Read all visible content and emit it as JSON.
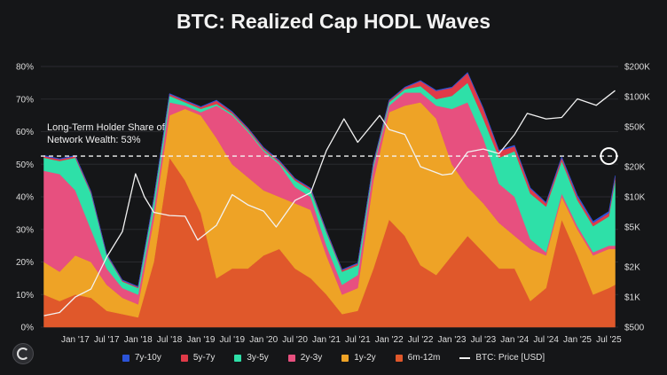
{
  "chart_data": {
    "type": "area",
    "title": "BTC: Realized Cap HODL Waves",
    "annotation": "Long-Term Holder Share of Network Wealth: 53%",
    "y_left_ticks": [
      "0%",
      "10%",
      "20%",
      "30%",
      "40%",
      "50%",
      "60%",
      "70%",
      "80%"
    ],
    "y_right_ticks": [
      "$500",
      "$1K",
      "$2K",
      "$5K",
      "$10K",
      "$20K",
      "$50K",
      "$100K",
      "$200K"
    ],
    "x_ticks": [
      "Jan '17",
      "Jul '17",
      "Jan '18",
      "Jul '18",
      "Jan '19",
      "Jul '19",
      "Jan '20",
      "Jul '20",
      "Jan '21",
      "Jul '21",
      "Jan '22",
      "Jul '22",
      "Jan '23",
      "Jul '23",
      "Jan '24",
      "Jul '24",
      "Jan '25",
      "Jul '25"
    ],
    "ylim_left": [
      0,
      80
    ],
    "ylim_right": [
      500,
      200000
    ],
    "y_right_scale": "log",
    "reference_line": 52.5,
    "x": [
      2016.5,
      2016.75,
      2017.0,
      2017.25,
      2017.5,
      2017.75,
      2018.0,
      2018.25,
      2018.5,
      2018.75,
      2019.0,
      2019.25,
      2019.5,
      2019.75,
      2020.0,
      2020.25,
      2020.5,
      2020.75,
      2021.0,
      2021.25,
      2021.5,
      2021.75,
      2022.0,
      2022.25,
      2022.5,
      2022.75,
      2023.0,
      2023.25,
      2023.5,
      2023.75,
      2024.0,
      2024.25,
      2024.5,
      2024.75,
      2025.0,
      2025.25,
      2025.5,
      2025.6
    ],
    "series": [
      {
        "name": "6m-12m",
        "color": "#e0582b",
        "values": [
          10,
          8,
          10,
          9,
          5,
          4,
          3,
          20,
          52,
          45,
          35,
          15,
          18,
          18,
          22,
          24,
          18,
          15,
          10,
          4,
          5,
          18,
          33,
          28,
          19,
          16,
          22,
          28,
          23,
          18,
          18,
          8,
          12,
          33,
          22,
          10,
          12,
          13
        ]
      },
      {
        "name": "1y-2y",
        "color": "#eea326",
        "values": [
          10,
          9,
          12,
          11,
          8,
          5,
          4,
          13,
          13,
          22,
          30,
          43,
          32,
          28,
          20,
          16,
          20,
          21,
          12,
          6,
          7,
          27,
          33,
          40,
          50,
          48,
          28,
          15,
          15,
          14,
          10,
          16,
          10,
          7,
          8,
          12,
          12,
          11
        ]
      },
      {
        "name": "2y-3y",
        "color": "#e7507f",
        "values": [
          28,
          30,
          20,
          10,
          5,
          3,
          3,
          3,
          4,
          1,
          1,
          10,
          15,
          14,
          12,
          10,
          5,
          4,
          3,
          3,
          4,
          4,
          2,
          4,
          3,
          4,
          17,
          26,
          20,
          12,
          12,
          3,
          1,
          1,
          1,
          1,
          1,
          1
        ]
      },
      {
        "name": "3y-5y",
        "color": "#2ee0a8",
        "values": [
          4,
          4,
          10,
          11,
          4,
          2,
          2,
          3,
          2,
          1,
          1,
          0.5,
          0.5,
          0.5,
          0.5,
          0.5,
          2,
          2,
          4,
          4,
          3,
          1,
          1,
          1,
          2,
          2,
          4,
          6,
          6,
          8,
          14,
          14,
          14,
          10,
          8,
          8,
          9,
          20
        ]
      },
      {
        "name": "5y-7y",
        "color": "#e03a48",
        "values": [
          0.5,
          0.5,
          0.5,
          0.5,
          0.3,
          0.3,
          0.3,
          0.5,
          0.5,
          0.5,
          0.5,
          1,
          0.5,
          0.5,
          0.5,
          0.5,
          0.5,
          0.5,
          0.5,
          0.5,
          0.5,
          0.5,
          0.5,
          0.5,
          1.5,
          2.5,
          2.5,
          3,
          3,
          2,
          1.5,
          1.5,
          1,
          1,
          1,
          1,
          1,
          1
        ]
      },
      {
        "name": "7y-10y",
        "color": "#2b53d8",
        "values": [
          0.2,
          0.2,
          0.2,
          0.2,
          0.2,
          0.2,
          0.2,
          0.2,
          0.2,
          0.2,
          0.2,
          0.2,
          0.2,
          0.2,
          0.2,
          0.2,
          0.2,
          0.2,
          0.2,
          0.2,
          0.2,
          0.2,
          0.2,
          0.2,
          0.2,
          0.2,
          0.2,
          0.2,
          0.3,
          0.3,
          0.3,
          0.3,
          0.3,
          0.3,
          0.5,
          0.5,
          0.5,
          0.5
        ]
      }
    ],
    "price_series": {
      "name": "BTC: Price [USD]",
      "color": "#f2f2f2",
      "x": [
        2016.5,
        2016.75,
        2017.0,
        2017.25,
        2017.5,
        2017.75,
        2017.96,
        2018.1,
        2018.25,
        2018.5,
        2018.75,
        2018.95,
        2019.25,
        2019.5,
        2019.75,
        2020.0,
        2020.2,
        2020.5,
        2020.75,
        2021.0,
        2021.28,
        2021.5,
        2021.85,
        2022.0,
        2022.25,
        2022.5,
        2022.85,
        2023.0,
        2023.25,
        2023.5,
        2023.75,
        2024.0,
        2024.2,
        2024.5,
        2024.75,
        2025.0,
        2025.3,
        2025.6
      ],
      "values": [
        650,
        700,
        1000,
        1200,
        2500,
        4500,
        17000,
        10000,
        7000,
        6500,
        6400,
        3700,
        5200,
        10500,
        8300,
        7200,
        5000,
        9200,
        11000,
        29000,
        60000,
        35000,
        65000,
        47000,
        42000,
        20000,
        16500,
        17000,
        28000,
        30000,
        27000,
        42000,
        68000,
        60000,
        62000,
        95000,
        82000,
        115000
      ]
    }
  },
  "legend": [
    {
      "label": "7y-10y",
      "color": "#2b53d8"
    },
    {
      "label": "5y-7y",
      "color": "#e03a48"
    },
    {
      "label": "3y-5y",
      "color": "#2ee0a8"
    },
    {
      "label": "2y-3y",
      "color": "#e7507f"
    },
    {
      "label": "1y-2y",
      "color": "#eea326"
    },
    {
      "label": "6m-12m",
      "color": "#e0582b"
    },
    {
      "label": "BTC: Price [USD]",
      "color": "#f2f2f2"
    }
  ],
  "icons": {
    "logo": "glassnode-logo-icon"
  }
}
